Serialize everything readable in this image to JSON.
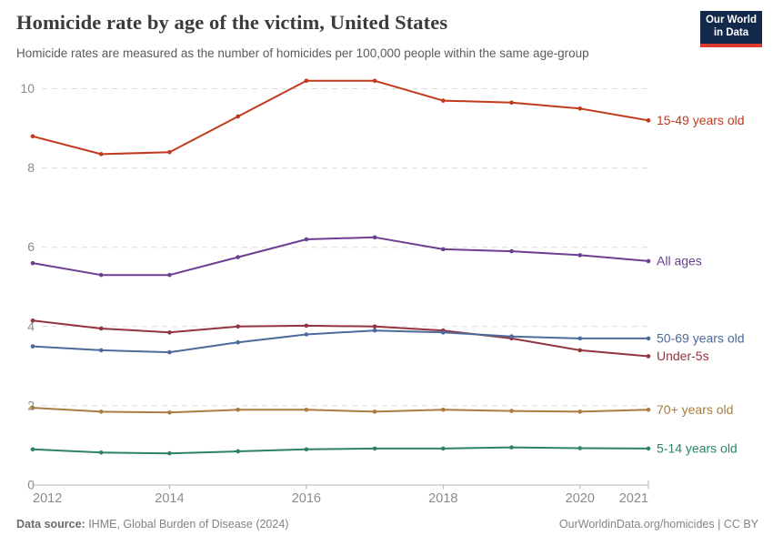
{
  "header": {
    "title": "Homicide rate by age of the victim, United States",
    "subtitle": "Homicide rates are measured as the number of homicides per 100,000 people within the same age-group",
    "logo": {
      "line1": "Our World",
      "line2": "in Data",
      "bg_color": "#12294b",
      "accent_color": "#dc3a2f"
    }
  },
  "chart_data": {
    "type": "line",
    "title": "Homicide rate by age of the victim, United States",
    "subtitle": "Homicide rates are measured as the number of homicides per 100,000 people within the same age-group",
    "x": [
      2012,
      2013,
      2014,
      2015,
      2016,
      2017,
      2018,
      2019,
      2020,
      2021
    ],
    "series": [
      {
        "name": "15-49 years old",
        "color": "#c23a1d",
        "values": [
          8.8,
          8.35,
          8.4,
          9.3,
          10.2,
          10.2,
          9.7,
          9.65,
          9.5,
          9.2
        ]
      },
      {
        "name": "All ages",
        "color": "#6d3e91",
        "values": [
          5.6,
          5.3,
          5.3,
          5.75,
          6.2,
          6.25,
          5.95,
          5.9,
          5.8,
          5.65
        ]
      },
      {
        "name": "Under-5s",
        "color": "#933540",
        "values": [
          4.15,
          3.95,
          3.85,
          4.0,
          4.02,
          4.0,
          3.9,
          3.7,
          3.4,
          3.25
        ]
      },
      {
        "name": "50-69 years old",
        "color": "#4c6a9c",
        "values": [
          3.5,
          3.4,
          3.35,
          3.6,
          3.8,
          3.9,
          3.85,
          3.75,
          3.7,
          3.7
        ]
      },
      {
        "name": "70+ years old",
        "color": "#a97c42",
        "values": [
          1.95,
          1.85,
          1.83,
          1.9,
          1.9,
          1.85,
          1.9,
          1.87,
          1.85,
          1.9
        ]
      },
      {
        "name": "5-14 years old",
        "color": "#2c8465",
        "values": [
          0.9,
          0.82,
          0.8,
          0.85,
          0.9,
          0.92,
          0.92,
          0.95,
          0.93,
          0.92
        ]
      }
    ],
    "ylim": [
      0,
      10
    ],
    "yticks": [
      0,
      2,
      4,
      6,
      8,
      10
    ],
    "xticks": [
      2012,
      2014,
      2016,
      2018,
      2020,
      2021
    ],
    "grid": "horizontal dashed gridlines on, no vertical grid",
    "legend_position": "labels at right end of each line",
    "axis_text_color": "#8b8b8b",
    "gridline_color": "#dcdcdc",
    "axis_line_color": "#b5b5b5"
  },
  "footer": {
    "source_label": "Data source:",
    "source_text": " IHME, Global Burden of Disease (2024)",
    "credit": "OurWorldinData.org/homicides | CC BY"
  }
}
